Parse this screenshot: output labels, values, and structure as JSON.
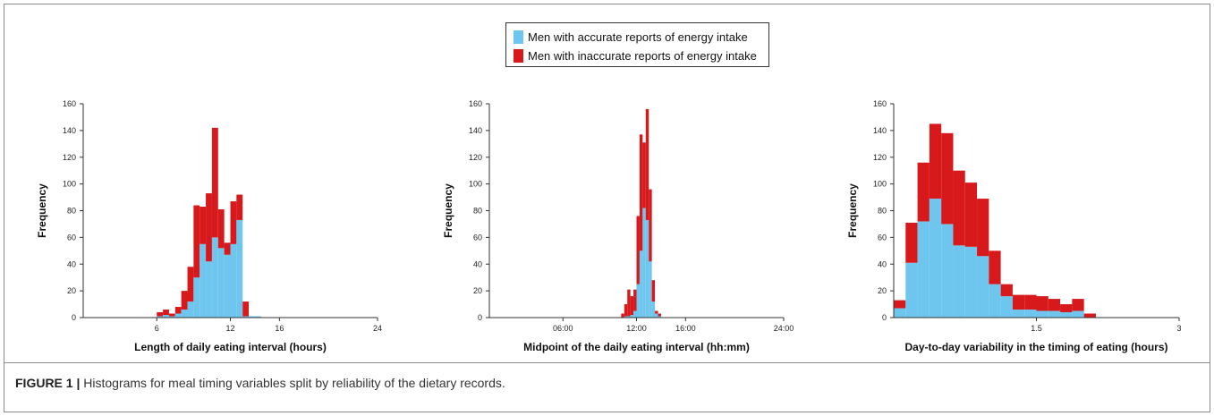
{
  "legend": {
    "accurate_label": "Men with accurate reports of energy intake",
    "inaccurate_label": "Men with inaccurate reports of energy intake"
  },
  "colors": {
    "accurate": "#6ec6ef",
    "inaccurate": "#d7191c",
    "axis": "#333333"
  },
  "caption": {
    "figure_label": "FIGURE 1 |",
    "text": "Histograms for meal timing variables split by reliability of the dietary records."
  },
  "chart_data": [
    {
      "type": "bar",
      "stacked": true,
      "xlabel": "Length of daily eating interval (hours)",
      "ylabel": "Frequency",
      "xlim": [
        0,
        24
      ],
      "ylim": [
        0,
        160
      ],
      "xticks": [
        6,
        12,
        16,
        24
      ],
      "xtick_labels": [
        "6",
        "12",
        "16",
        "24"
      ],
      "yticks": [
        0,
        20,
        40,
        60,
        80,
        100,
        120,
        140,
        160
      ],
      "bin_width": 0.5,
      "bin_starts": [
        6,
        6.5,
        7,
        7.5,
        8,
        8.5,
        9,
        9.5,
        10,
        10.5,
        11,
        11.5,
        12,
        12.5,
        13,
        13.5,
        14
      ],
      "series": [
        {
          "name": "Men with accurate reports of energy intake",
          "values": [
            1,
            2,
            1,
            3,
            6,
            12,
            30,
            55,
            42,
            60,
            52,
            47,
            55,
            73,
            1,
            1,
            1
          ]
        },
        {
          "name": "Men with inaccurate reports of energy intake",
          "values": [
            3,
            4,
            2,
            5,
            14,
            26,
            54,
            28,
            51,
            82,
            29,
            9,
            32,
            19,
            11,
            0,
            0
          ]
        }
      ]
    },
    {
      "type": "bar",
      "stacked": true,
      "xlabel": "Midpoint of the daily eating interval (hh:mm)",
      "ylabel": "Frequency",
      "xlim": [
        0,
        24
      ],
      "ylim": [
        0,
        160
      ],
      "xticks": [
        6,
        12,
        16,
        24
      ],
      "xtick_labels": [
        "06:00",
        "12:00",
        "16:00",
        "24:00"
      ],
      "yticks": [
        0,
        20,
        40,
        60,
        80,
        100,
        120,
        140,
        160
      ],
      "bin_width": 0.25,
      "bin_starts": [
        10.75,
        11,
        11.25,
        11.5,
        11.75,
        12,
        12.25,
        12.5,
        12.75,
        13,
        13.25,
        13.5,
        13.75
      ],
      "series": [
        {
          "name": "Men with accurate reports of energy intake",
          "values": [
            0,
            1,
            1,
            2,
            5,
            25,
            50,
            82,
            73,
            42,
            12,
            3,
            1
          ]
        },
        {
          "name": "Men with inaccurate reports of energy intake",
          "values": [
            3,
            9,
            20,
            14,
            16,
            51,
            87,
            49,
            83,
            54,
            16,
            2,
            2
          ]
        }
      ]
    },
    {
      "type": "bar",
      "stacked": true,
      "xlabel": "Day-to-day variability in the timing of eating  (hours)",
      "ylabel": "Frequency",
      "xlim": [
        0,
        3
      ],
      "ylim": [
        0,
        160
      ],
      "xticks": [
        1.5,
        3
      ],
      "xtick_labels": [
        "1.5",
        "3"
      ],
      "yticks": [
        0,
        20,
        40,
        60,
        80,
        100,
        120,
        140,
        160
      ],
      "bin_width": 0.125,
      "bin_starts": [
        0,
        0.125,
        0.25,
        0.375,
        0.5,
        0.625,
        0.75,
        0.875,
        1,
        1.125,
        1.25,
        1.375,
        1.5,
        1.625,
        1.75,
        1.875,
        2
      ],
      "series": [
        {
          "name": "Men with accurate reports of energy intake",
          "values": [
            7,
            41,
            72,
            89,
            70,
            54,
            53,
            46,
            25,
            16,
            6,
            6,
            5,
            5,
            4,
            5,
            0
          ]
        },
        {
          "name": "Men with inaccurate reports of energy intake",
          "values": [
            6,
            30,
            44,
            56,
            68,
            56,
            48,
            43,
            25,
            9,
            11,
            11,
            11,
            9,
            6,
            9,
            3
          ]
        }
      ]
    }
  ]
}
